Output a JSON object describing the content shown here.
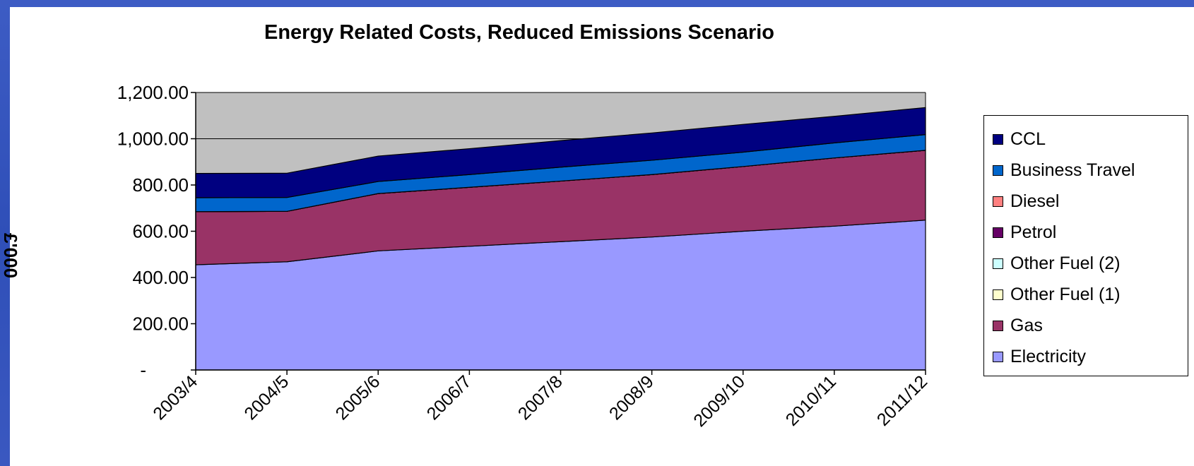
{
  "chart_data": {
    "type": "area",
    "stacked": true,
    "title": "Energy Related Costs, Reduced Emissions Scenario",
    "ylabel": "£'000",
    "xlabel": "",
    "categories": [
      "2003/4",
      "2004/5",
      "2005/6",
      "2006/7",
      "2007/8",
      "2008/9",
      "2009/10",
      "2010/11",
      "2011/12"
    ],
    "ylim": [
      0,
      1200
    ],
    "yticks": [
      0,
      200,
      400,
      600,
      800,
      1000,
      1200
    ],
    "ytick_labels": [
      "-",
      "200.00",
      "400.00",
      "600.00",
      "800.00",
      "1,000.00",
      "1,200.00"
    ],
    "grid": true,
    "plot_background": "#c0c0c0",
    "legend_position": "right",
    "series": [
      {
        "name": "Electricity",
        "color": "#9999ff",
        "values": [
          455,
          468,
          515,
          535,
          555,
          575,
          600,
          622,
          648
        ]
      },
      {
        "name": "Gas",
        "color": "#993366",
        "values": [
          230,
          218,
          248,
          255,
          262,
          270,
          280,
          295,
          302
        ]
      },
      {
        "name": "Other Fuel (1)",
        "color": "#ffffcc",
        "values": [
          0,
          0,
          0,
          0,
          0,
          0,
          0,
          0,
          0
        ]
      },
      {
        "name": "Other Fuel (2)",
        "color": "#ccffff",
        "values": [
          0,
          0,
          0,
          0,
          0,
          0,
          0,
          0,
          0
        ]
      },
      {
        "name": "Petrol",
        "color": "#660066",
        "values": [
          0,
          0,
          0,
          0,
          0,
          0,
          0,
          0,
          0
        ]
      },
      {
        "name": "Diesel",
        "color": "#ff8080",
        "values": [
          0,
          0,
          0,
          0,
          0,
          0,
          0,
          0,
          0
        ]
      },
      {
        "name": "Business Travel",
        "color": "#0066cc",
        "values": [
          60,
          60,
          52,
          55,
          60,
          62,
          62,
          65,
          68
        ]
      },
      {
        "name": "CCL",
        "color": "#000080",
        "values": [
          105,
          105,
          110,
          112,
          115,
          118,
          120,
          115,
          117
        ]
      }
    ]
  }
}
